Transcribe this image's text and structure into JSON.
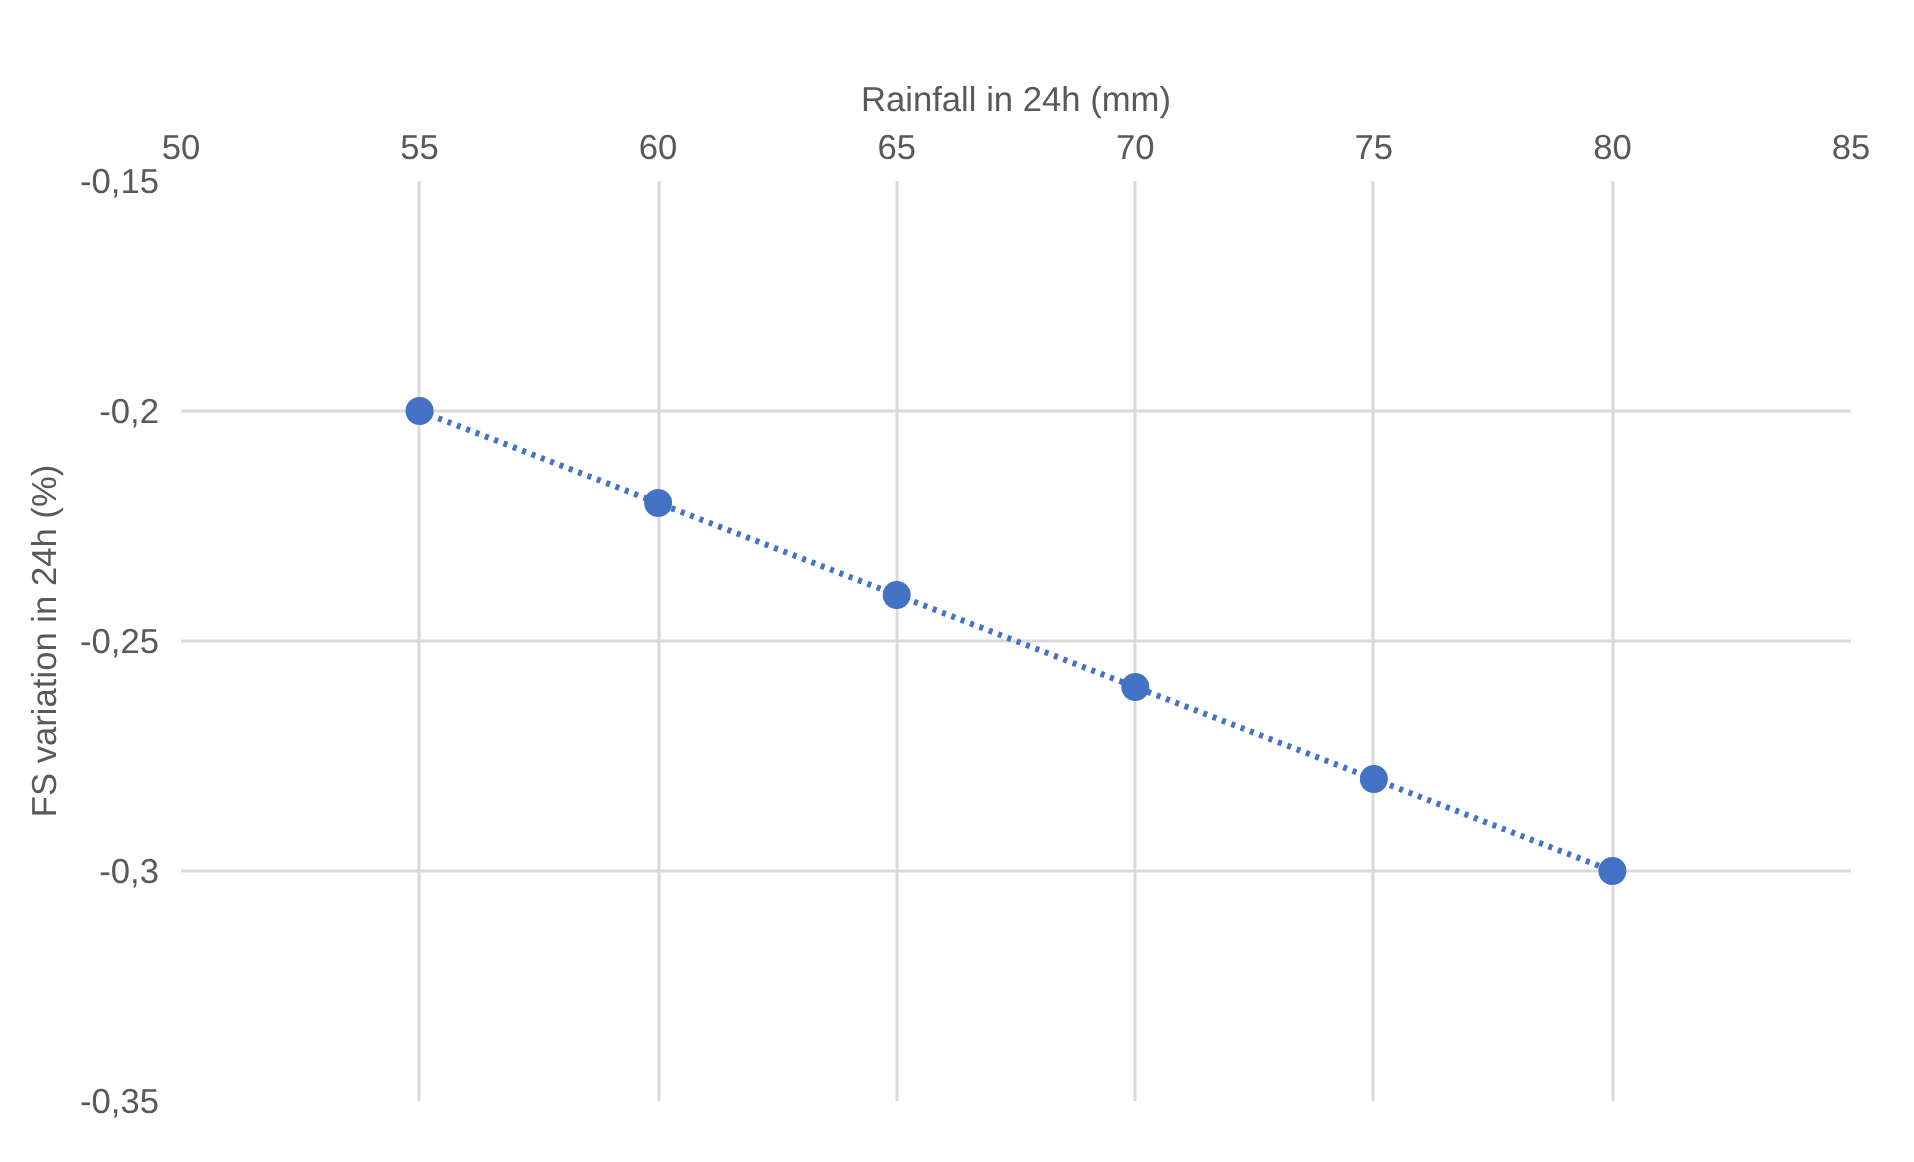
{
  "chart_data": {
    "type": "line",
    "xlabel": "Rainfall in 24h (mm)",
    "ylabel": "FS variation in 24h (%)",
    "x": [
      55,
      60,
      65,
      70,
      75,
      80
    ],
    "series": [
      {
        "color": "#4472c4",
        "values": [
          -0.2,
          -0.22,
          -0.24,
          -0.26,
          -0.28,
          -0.3
        ]
      }
    ],
    "xlim": [
      50,
      85
    ],
    "xticks": [
      50,
      55,
      60,
      65,
      70,
      75,
      80,
      85
    ],
    "ylim": [
      -0.35,
      -0.15
    ],
    "yticks": [
      {
        "value": -0.35,
        "label": "-0,35"
      },
      {
        "value": -0.3,
        "label": "-0,3"
      },
      {
        "value": -0.25,
        "label": "-0,25"
      },
      {
        "value": -0.2,
        "label": "-0,2"
      },
      {
        "value": -0.15,
        "label": "-0,15"
      }
    ],
    "grid": true,
    "marker": "circle",
    "line_style": "dotted"
  }
}
